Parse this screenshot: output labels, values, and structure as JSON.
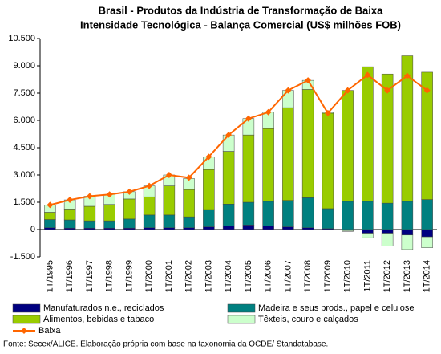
{
  "chart_data": {
    "type": "bar",
    "stacked": true,
    "title": [
      "Brasil - Produtos da Indústria de Transformação de Baixa",
      "Intensidade Tecnológica - Balança Comercial (US$ milhões FOB)"
    ],
    "categories": [
      "1T/1995",
      "1T/1996",
      "1T/1997",
      "1T/1998",
      "1T/1999",
      "1T/2000",
      "1T/2001",
      "1T/2002",
      "1T/2003",
      "1T/2004",
      "1T/2005",
      "1T/2006",
      "1T/2007",
      "1T/2008",
      "1T/2009",
      "1T/2010",
      "1T/2011",
      "1T/2012",
      "1T/2013",
      "1T/2014"
    ],
    "series": [
      {
        "name": "Manufaturados n.e., reciclados",
        "color": "#000080",
        "values": [
          100,
          80,
          80,
          80,
          80,
          100,
          100,
          100,
          150,
          200,
          250,
          200,
          150,
          100,
          50,
          -50,
          -200,
          -200,
          -300,
          -400
        ]
      },
      {
        "name": "Madeira e seus prods., papel e celulose",
        "color": "#008080",
        "values": [
          450,
          450,
          400,
          400,
          500,
          700,
          700,
          600,
          950,
          1200,
          1250,
          1350,
          1450,
          1650,
          1100,
          1550,
          1550,
          1450,
          1550,
          1650
        ]
      },
      {
        "name": "Alimentos, bebidas e tabaco",
        "color": "#99cc00",
        "values": [
          400,
          600,
          800,
          900,
          1100,
          1000,
          1600,
          1500,
          2200,
          2900,
          3700,
          4000,
          5100,
          5950,
          5250,
          6100,
          7400,
          7100,
          8000,
          7000
        ]
      },
      {
        "name": "Têxteis, couro e calçados",
        "color": "#ccffcc",
        "values": [
          400,
          500,
          550,
          550,
          400,
          600,
          600,
          600,
          700,
          900,
          900,
          900,
          950,
          500,
          50,
          -50,
          -250,
          -700,
          -800,
          -600
        ]
      },
      {
        "name": "Baixa",
        "type": "line",
        "color": "#ff6600",
        "values": [
          1350,
          1630,
          1830,
          1930,
          2080,
          2400,
          3000,
          2850,
          4000,
          5200,
          6100,
          6450,
          7650,
          8200,
          6400,
          7650,
          8500,
          7650,
          8450,
          7650
        ]
      }
    ],
    "ylim": [
      -1500,
      10500
    ],
    "yticks": [
      {
        "value": -1500,
        "label": "-1.500"
      },
      0,
      {
        "value": 1500,
        "label": "1.500"
      },
      {
        "value": 3000,
        "label": "3.000"
      },
      {
        "value": 4500,
        "label": "4.500"
      },
      {
        "value": 6000,
        "label": "6.000"
      },
      {
        "value": 7500,
        "label": "7.500"
      },
      {
        "value": 9000,
        "label": "9.000"
      },
      {
        "value": 10500,
        "label": "10.500"
      }
    ],
    "note": "Fonte: Secex/ALICE. Elaboração própria com base na taxonomia da OCDE/ Standatabase."
  }
}
